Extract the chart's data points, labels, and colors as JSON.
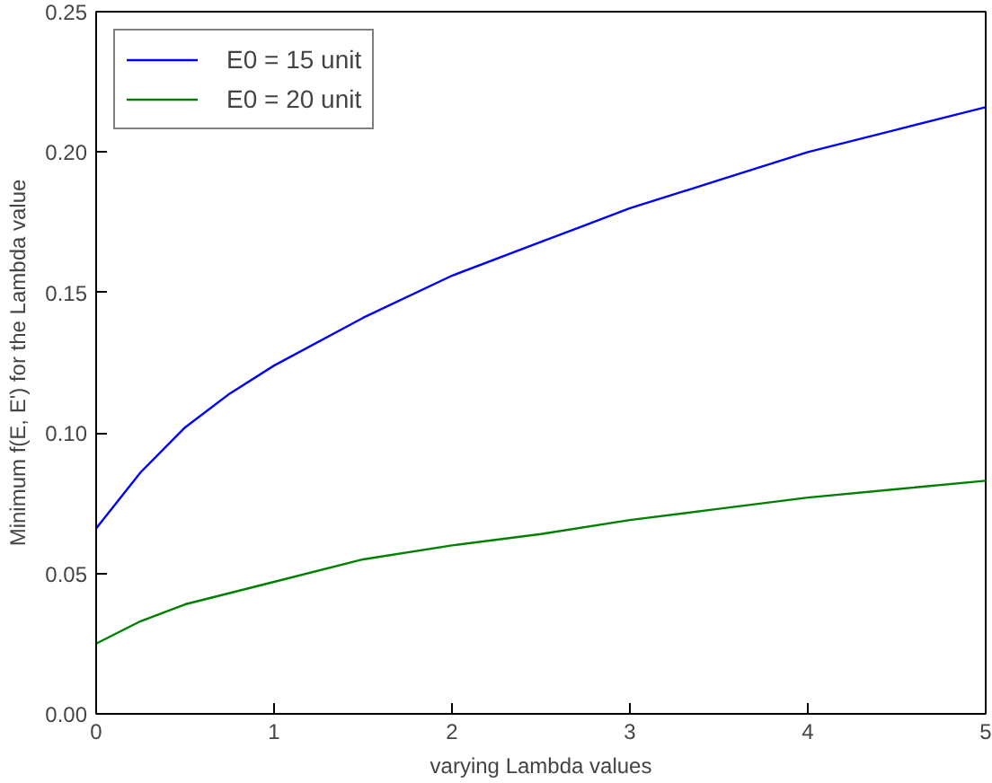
{
  "chart_data": {
    "type": "line",
    "xlabel": "varying Lambda values",
    "ylabel": "Minimum f(E, E') for the Lambda value",
    "x": [
      0,
      0.25,
      0.5,
      0.75,
      1,
      1.5,
      2,
      2.5,
      3,
      3.5,
      4,
      4.5,
      5
    ],
    "series": [
      {
        "name": "E0 = 15 unit",
        "color": "#0000ff",
        "values": [
          0.066,
          0.086,
          0.102,
          0.114,
          0.124,
          0.141,
          0.156,
          0.168,
          0.18,
          0.19,
          0.2,
          0.208,
          0.216
        ]
      },
      {
        "name": "E0 = 20 unit",
        "color": "#008000",
        "values": [
          0.025,
          0.033,
          0.039,
          0.043,
          0.047,
          0.055,
          0.06,
          0.064,
          0.069,
          0.073,
          0.077,
          0.08,
          0.083
        ]
      }
    ],
    "xlim": [
      0,
      5
    ],
    "ylim": [
      0,
      0.25
    ],
    "xticks": [
      0,
      1,
      2,
      3,
      4,
      5
    ],
    "yticks": [
      {
        "value": 0,
        "label": "0.00"
      },
      {
        "value": 0.05,
        "label": "0.05"
      },
      {
        "value": 0.1,
        "label": "0.10"
      },
      {
        "value": 0.15,
        "label": "0.15"
      },
      {
        "value": 0.2,
        "label": "0.20"
      },
      {
        "value": 0.25,
        "label": "0.25"
      }
    ],
    "grid": false,
    "legend": "top left",
    "marker": "none",
    "line_style": "solid"
  }
}
